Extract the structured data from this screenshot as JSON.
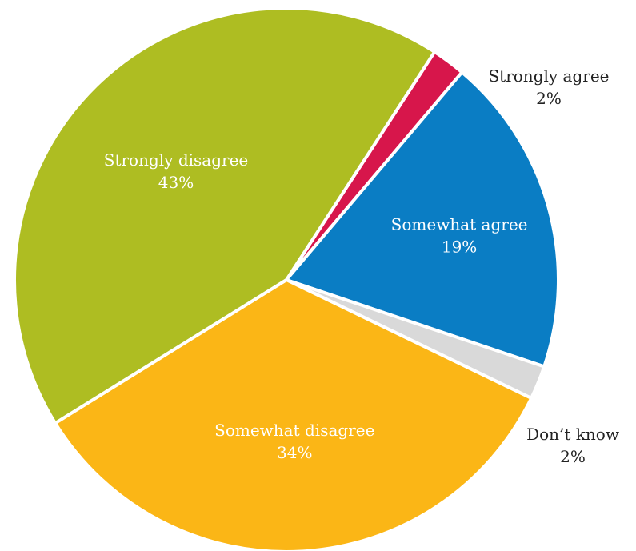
{
  "chart_data": {
    "type": "pie",
    "title": "",
    "slices": [
      {
        "label": "Strongly agree",
        "value_label": "2%",
        "value": 2,
        "color": "#d7164b",
        "label_position": "outside"
      },
      {
        "label": "Somewhat agree",
        "value_label": "19%",
        "value": 19,
        "color": "#0a7dc4",
        "label_position": "inside"
      },
      {
        "label": "Don’t know",
        "value_label": "2%",
        "value": 2,
        "color": "#d9d9d9",
        "label_position": "outside"
      },
      {
        "label": "Somewhat disagree",
        "value_label": "34%",
        "value": 34,
        "color": "#fbb616",
        "label_position": "inside"
      },
      {
        "label": "Strongly disagree",
        "value_label": "43%",
        "value": 43,
        "color": "#aebd22",
        "label_position": "inside"
      }
    ]
  }
}
